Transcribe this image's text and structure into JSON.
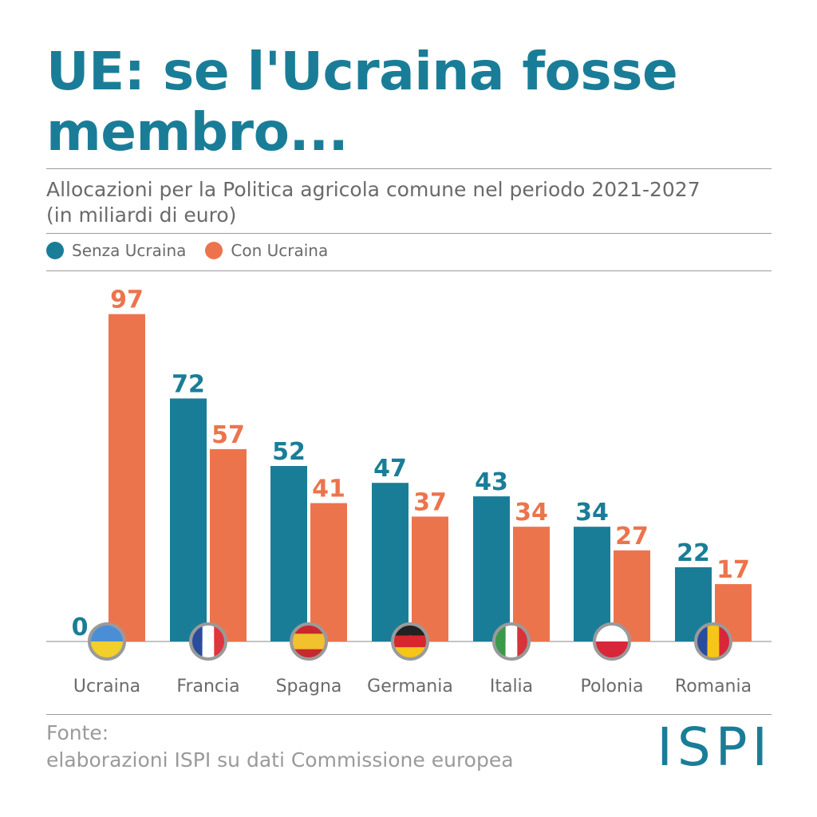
{
  "header": {
    "title": "UE: se l'Ucraina fosse membro...",
    "subtitle_line1": "Allocazioni per la Politica agricola comune nel periodo 2021-2027",
    "subtitle_line2": "(in miliardi di euro)"
  },
  "legend": {
    "items": [
      {
        "label": "Senza Ucraina",
        "color": "#1a7d98"
      },
      {
        "label": "Con Ucraina",
        "color": "#ec744d"
      }
    ]
  },
  "chart_data": {
    "type": "bar",
    "title": "UE: se l'Ucraina fosse membro...",
    "subtitle": "Allocazioni per la Politica agricola comune nel periodo 2021-2027 (in miliardi di euro)",
    "categories": [
      "Ucraina",
      "Francia",
      "Spagna",
      "Germania",
      "Italia",
      "Polonia",
      "Romania"
    ],
    "series": [
      {
        "name": "Senza Ucraina",
        "color": "#1a7d98",
        "values": [
          0,
          72,
          52,
          47,
          43,
          34,
          22
        ]
      },
      {
        "name": "Con Ucraina",
        "color": "#ec744d",
        "values": [
          97,
          57,
          41,
          37,
          34,
          27,
          17
        ]
      }
    ],
    "ylim": [
      0,
      100
    ],
    "grid": false,
    "legend": "top-left",
    "flag_icons": [
      "ukraine-flag-icon",
      "france-flag-icon",
      "spain-flag-icon",
      "germany-flag-icon",
      "italy-flag-icon",
      "poland-flag-icon",
      "romania-flag-icon"
    ]
  },
  "footer": {
    "source_line1": "Fonte:",
    "source_line2": "elaborazioni ISPI su dati Commissione europea",
    "logo": "ISPI"
  }
}
